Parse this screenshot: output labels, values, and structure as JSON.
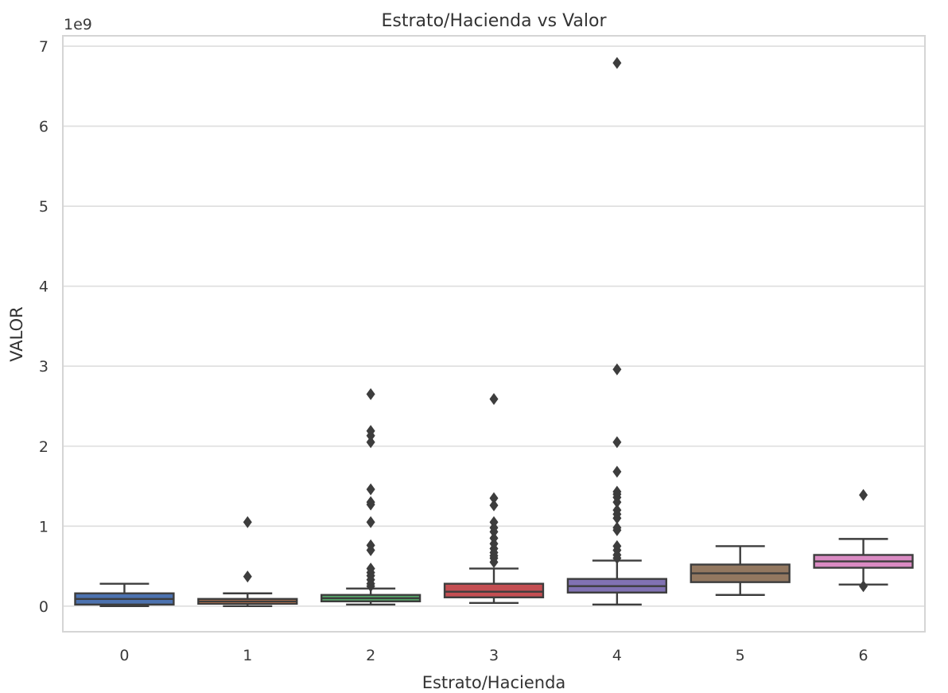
{
  "chart_data": {
    "type": "box",
    "title": "Estrato/Hacienda vs Valor",
    "xlabel": "Estrato/Hacienda",
    "ylabel": "VALOR",
    "y_offset_label": "1e9",
    "y_scale": 1000000000,
    "ylim": [
      -0.32,
      7.13
    ],
    "yticks": [
      0,
      1,
      2,
      3,
      4,
      5,
      6,
      7
    ],
    "grid": true,
    "box_edge_color": "#3d3d3d",
    "boxes": [
      {
        "category": "0",
        "color": "#4c72b0",
        "whisker_low": 0.0,
        "q1": 0.02,
        "median": 0.09,
        "q3": 0.16,
        "whisker_high": 0.28,
        "outliers": []
      },
      {
        "category": "1",
        "color": "#dd8452",
        "whisker_low": 0.0,
        "q1": 0.03,
        "median": 0.06,
        "q3": 0.09,
        "whisker_high": 0.16,
        "outliers": [
          0.37,
          1.05
        ]
      },
      {
        "category": "2",
        "color": "#55a868",
        "whisker_low": 0.02,
        "q1": 0.06,
        "median": 0.1,
        "q3": 0.14,
        "whisker_high": 0.22,
        "outliers": [
          0.25,
          0.28,
          0.33,
          0.38,
          0.42,
          0.47,
          0.7,
          0.76,
          1.05,
          1.27,
          1.3,
          1.46,
          2.05,
          2.13,
          2.19,
          2.65
        ]
      },
      {
        "category": "3",
        "color": "#c44e52",
        "whisker_low": 0.04,
        "q1": 0.11,
        "median": 0.18,
        "q3": 0.28,
        "whisker_high": 0.47,
        "outliers": [
          0.55,
          0.6,
          0.63,
          0.67,
          0.72,
          0.78,
          0.85,
          0.93,
          0.98,
          1.05,
          1.26,
          1.35,
          2.59
        ]
      },
      {
        "category": "4",
        "color": "#8172b3",
        "whisker_low": 0.02,
        "q1": 0.17,
        "median": 0.25,
        "q3": 0.34,
        "whisker_high": 0.57,
        "outliers": [
          0.6,
          0.64,
          0.7,
          0.75,
          0.95,
          0.98,
          1.1,
          1.15,
          1.2,
          1.3,
          1.36,
          1.4,
          1.43,
          1.68,
          2.05,
          2.96,
          6.79
        ]
      },
      {
        "category": "5",
        "color": "#937860",
        "whisker_low": 0.14,
        "q1": 0.3,
        "median": 0.41,
        "q3": 0.52,
        "whisker_high": 0.75,
        "outliers": []
      },
      {
        "category": "6",
        "color": "#da8bc3",
        "whisker_low": 0.27,
        "q1": 0.48,
        "median": 0.56,
        "q3": 0.64,
        "whisker_high": 0.84,
        "outliers": [
          0.25,
          1.39
        ]
      }
    ]
  }
}
